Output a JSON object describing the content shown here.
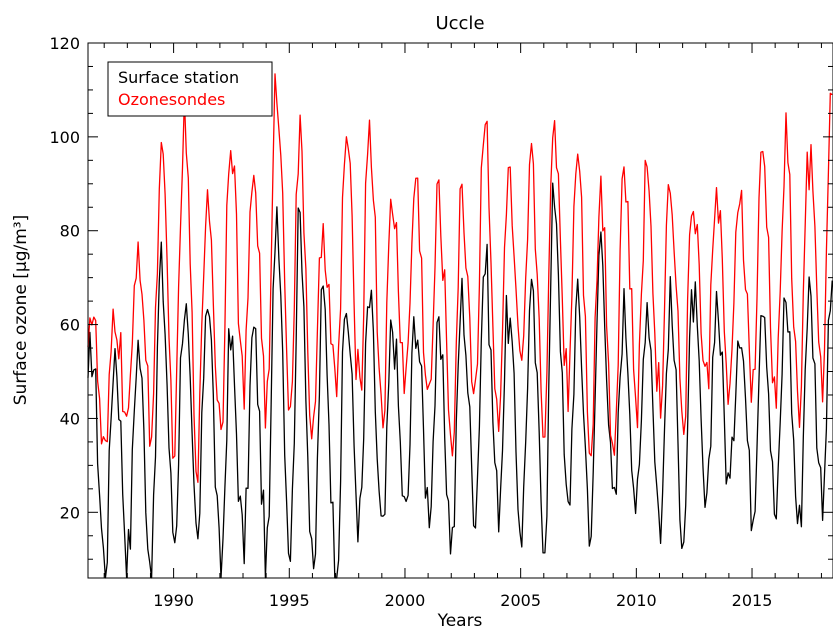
{
  "chart_data": {
    "type": "line",
    "title": "Uccle",
    "xlabel": "Years",
    "ylabel": "Surface ozone [μg/m³]",
    "xlim": [
      1986.3,
      2018.5
    ],
    "ylim": [
      6,
      120
    ],
    "x_ticks": [
      1990,
      1995,
      2000,
      2005,
      2010,
      2015
    ],
    "y_ticks": [
      20,
      40,
      60,
      80,
      100,
      120
    ],
    "grid": false,
    "legend_position": "top-left",
    "sampling": "monthly",
    "series": [
      {
        "name": "Surface station",
        "color": "#000000",
        "summer_peaks": [
          {
            "year": 1987,
            "value": 55
          },
          {
            "year": 1988,
            "value": 56
          },
          {
            "year": 1989,
            "value": 72
          },
          {
            "year": 1990,
            "value": 65
          },
          {
            "year": 1991,
            "value": 68
          },
          {
            "year": 1992,
            "value": 56
          },
          {
            "year": 1993,
            "value": 58
          },
          {
            "year": 1994,
            "value": 86
          },
          {
            "year": 1995,
            "value": 83
          },
          {
            "year": 1996,
            "value": 66
          },
          {
            "year": 1997,
            "value": 64
          },
          {
            "year": 1998,
            "value": 65
          },
          {
            "year": 1999,
            "value": 60
          },
          {
            "year": 2000,
            "value": 62
          },
          {
            "year": 2001,
            "value": 56
          },
          {
            "year": 2002,
            "value": 66
          },
          {
            "year": 2003,
            "value": 74
          },
          {
            "year": 2004,
            "value": 62
          },
          {
            "year": 2005,
            "value": 65
          },
          {
            "year": 2006,
            "value": 89
          },
          {
            "year": 2007,
            "value": 64
          },
          {
            "year": 2008,
            "value": 79
          },
          {
            "year": 2009,
            "value": 63
          },
          {
            "year": 2010,
            "value": 66
          },
          {
            "year": 2011,
            "value": 64
          },
          {
            "year": 2012,
            "value": 66
          },
          {
            "year": 2013,
            "value": 66
          },
          {
            "year": 2014,
            "value": 62
          },
          {
            "year": 2015,
            "value": 68
          },
          {
            "year": 2016,
            "value": 66
          },
          {
            "year": 2017,
            "value": 67
          },
          {
            "year": 2018,
            "value": 67
          }
        ],
        "winter_minima": [
          {
            "year": 1986,
            "value": 15
          },
          {
            "year": 1987,
            "value": 9
          },
          {
            "year": 1988,
            "value": 11
          },
          {
            "year": 1989,
            "value": 9
          },
          {
            "year": 1990,
            "value": 15
          },
          {
            "year": 1991,
            "value": 13
          },
          {
            "year": 1992,
            "value": 8
          },
          {
            "year": 1993,
            "value": 13
          },
          {
            "year": 1994,
            "value": 10
          },
          {
            "year": 1995,
            "value": 13
          },
          {
            "year": 1996,
            "value": 5
          },
          {
            "year": 1997,
            "value": 8
          },
          {
            "year": 1998,
            "value": 18
          },
          {
            "year": 1999,
            "value": 14
          },
          {
            "year": 2000,
            "value": 19
          },
          {
            "year": 2001,
            "value": 22
          },
          {
            "year": 2002,
            "value": 14
          },
          {
            "year": 2003,
            "value": 22
          },
          {
            "year": 2004,
            "value": 22
          },
          {
            "year": 2005,
            "value": 17
          },
          {
            "year": 2006,
            "value": 16
          },
          {
            "year": 2007,
            "value": 20
          },
          {
            "year": 2008,
            "value": 17
          },
          {
            "year": 2009,
            "value": 20
          },
          {
            "year": 2010,
            "value": 21
          },
          {
            "year": 2011,
            "value": 18
          },
          {
            "year": 2012,
            "value": 17
          },
          {
            "year": 2013,
            "value": 19
          },
          {
            "year": 2014,
            "value": 25
          },
          {
            "year": 2015,
            "value": 21
          },
          {
            "year": 2016,
            "value": 19
          },
          {
            "year": 2017,
            "value": 17
          },
          {
            "year": 2018,
            "value": 25
          }
        ]
      },
      {
        "name": "Ozonesondes",
        "color": "#ff0000",
        "summer_peaks": [
          {
            "year": 1987,
            "value": 63
          },
          {
            "year": 1988,
            "value": 78
          },
          {
            "year": 1989,
            "value": 94
          },
          {
            "year": 1990,
            "value": 102
          },
          {
            "year": 1991,
            "value": 89
          },
          {
            "year": 1992,
            "value": 103
          },
          {
            "year": 1993,
            "value": 93
          },
          {
            "year": 1994,
            "value": 112
          },
          {
            "year": 1995,
            "value": 98
          },
          {
            "year": 1996,
            "value": 81
          },
          {
            "year": 1997,
            "value": 100
          },
          {
            "year": 1998,
            "value": 103
          },
          {
            "year": 1999,
            "value": 86
          },
          {
            "year": 2000,
            "value": 91
          },
          {
            "year": 2001,
            "value": 87
          },
          {
            "year": 2002,
            "value": 86
          },
          {
            "year": 2003,
            "value": 107
          },
          {
            "year": 2004,
            "value": 91
          },
          {
            "year": 2005,
            "value": 93
          },
          {
            "year": 2006,
            "value": 103
          },
          {
            "year": 2007,
            "value": 100
          },
          {
            "year": 2008,
            "value": 89
          },
          {
            "year": 2009,
            "value": 93
          },
          {
            "year": 2010,
            "value": 94
          },
          {
            "year": 2011,
            "value": 93
          },
          {
            "year": 2012,
            "value": 88
          },
          {
            "year": 2013,
            "value": 91
          },
          {
            "year": 2014,
            "value": 89
          },
          {
            "year": 2015,
            "value": 96
          },
          {
            "year": 2016,
            "value": 99
          },
          {
            "year": 2017,
            "value": 95
          },
          {
            "year": 2018,
            "value": 108
          }
        ],
        "winter_minima": [
          {
            "year": 1986,
            "value": 55
          },
          {
            "year": 1987,
            "value": 30
          },
          {
            "year": 1988,
            "value": 38
          },
          {
            "year": 1989,
            "value": 38
          },
          {
            "year": 1990,
            "value": 36
          },
          {
            "year": 1991,
            "value": 33
          },
          {
            "year": 1992,
            "value": 38
          },
          {
            "year": 1993,
            "value": 46
          },
          {
            "year": 1994,
            "value": 42
          },
          {
            "year": 1995,
            "value": 46
          },
          {
            "year": 1996,
            "value": 35
          },
          {
            "year": 1997,
            "value": 45
          },
          {
            "year": 1998,
            "value": 46
          },
          {
            "year": 1999,
            "value": 42
          },
          {
            "year": 2000,
            "value": 48
          },
          {
            "year": 2001,
            "value": 43
          },
          {
            "year": 2002,
            "value": 36
          },
          {
            "year": 2003,
            "value": 47
          },
          {
            "year": 2004,
            "value": 36
          },
          {
            "year": 2005,
            "value": 47
          },
          {
            "year": 2006,
            "value": 41
          },
          {
            "year": 2007,
            "value": 48
          },
          {
            "year": 2008,
            "value": 36
          },
          {
            "year": 2009,
            "value": 34
          },
          {
            "year": 2010,
            "value": 43
          },
          {
            "year": 2011,
            "value": 44
          },
          {
            "year": 2012,
            "value": 40
          },
          {
            "year": 2013,
            "value": 46
          },
          {
            "year": 2014,
            "value": 42
          },
          {
            "year": 2015,
            "value": 46
          },
          {
            "year": 2016,
            "value": 44
          },
          {
            "year": 2017,
            "value": 42
          },
          {
            "year": 2018,
            "value": 50
          }
        ]
      }
    ]
  }
}
